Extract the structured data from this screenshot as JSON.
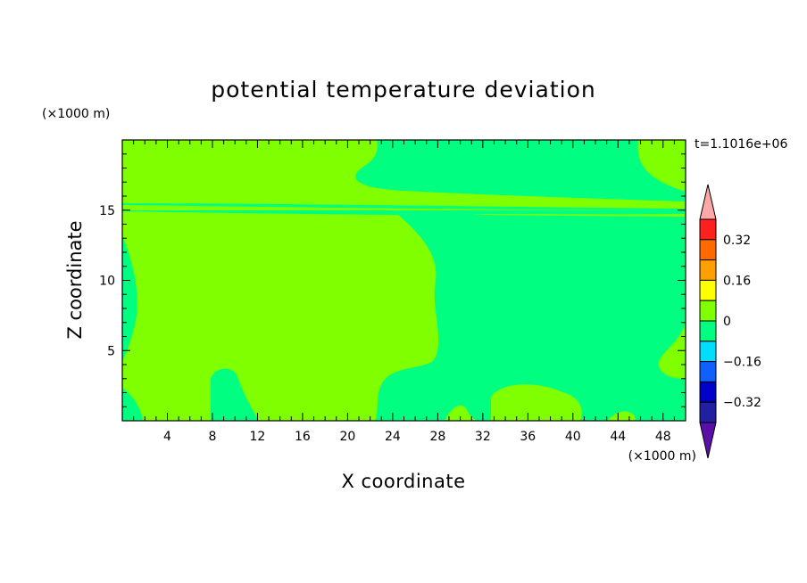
{
  "chart_data": {
    "type": "heatmap",
    "title": "potential temperature deviation",
    "xlabel": "X coordinate",
    "ylabel": "Z coordinate",
    "x_unit": "(×1000 m)",
    "y_unit": "(×1000 m)",
    "time_label": "t=1.1016e+06",
    "xlim": [
      0,
      50
    ],
    "ylim": [
      0,
      20
    ],
    "x_ticks": [
      "4",
      "8",
      "12",
      "16",
      "20",
      "24",
      "28",
      "32",
      "36",
      "40",
      "44",
      "48"
    ],
    "y_ticks": [
      "5",
      "10",
      "15"
    ],
    "colorbar": {
      "labels": [
        "0.32",
        "0.16",
        "0",
        "-0.16",
        "-0.32"
      ],
      "levels": [
        -0.4,
        -0.32,
        -0.24,
        -0.16,
        -0.08,
        0,
        0.08,
        0.16,
        0.24,
        0.32,
        0.4
      ],
      "colors": [
        "#5a0fa8",
        "#2020a0",
        "#0000c8",
        "#1060ff",
        "#00ddff",
        "#00ff80",
        "#80ff00",
        "#ffff00",
        "#ffa000",
        "#ff6a00",
        "#ff2020",
        "#ffa8a8"
      ]
    },
    "field_summary": {
      "background_interval": [
        0,
        0.08
      ],
      "regions_interval": [
        -0.08,
        0
      ],
      "colors": {
        "positive_band": "#80ff00",
        "negative_band": "#00ff80"
      }
    }
  }
}
